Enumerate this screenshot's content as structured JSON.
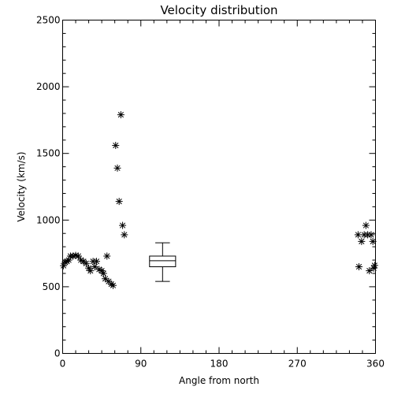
{
  "chart_data": {
    "type": "scatter",
    "title": "Velocity distribution",
    "xlabel": "Angle from north",
    "ylabel": "Velocity (km/s)",
    "xlim": [
      0,
      360
    ],
    "ylim": [
      0,
      2500
    ],
    "x_ticks": [
      "0",
      "90",
      "180",
      "270",
      "360"
    ],
    "y_ticks": [
      "0",
      "500",
      "1000",
      "1500",
      "2000",
      "2500"
    ],
    "grid": false,
    "legend": "none",
    "marker": "asterisk",
    "points": [
      {
        "x": 1,
        "y": 658
      },
      {
        "x": 3,
        "y": 685
      },
      {
        "x": 5,
        "y": 690
      },
      {
        "x": 7,
        "y": 700
      },
      {
        "x": 9,
        "y": 730
      },
      {
        "x": 12,
        "y": 730
      },
      {
        "x": 15,
        "y": 735
      },
      {
        "x": 18,
        "y": 730
      },
      {
        "x": 21,
        "y": 700
      },
      {
        "x": 24,
        "y": 690
      },
      {
        "x": 27,
        "y": 675
      },
      {
        "x": 30,
        "y": 640
      },
      {
        "x": 32,
        "y": 620
      },
      {
        "x": 35,
        "y": 690
      },
      {
        "x": 37,
        "y": 650
      },
      {
        "x": 39,
        "y": 690
      },
      {
        "x": 42,
        "y": 630
      },
      {
        "x": 45,
        "y": 620
      },
      {
        "x": 47,
        "y": 600
      },
      {
        "x": 49,
        "y": 560
      },
      {
        "x": 51,
        "y": 730
      },
      {
        "x": 53,
        "y": 540
      },
      {
        "x": 56,
        "y": 520
      },
      {
        "x": 58,
        "y": 510
      },
      {
        "x": 61,
        "y": 1560
      },
      {
        "x": 63,
        "y": 1390
      },
      {
        "x": 65,
        "y": 1140
      },
      {
        "x": 67,
        "y": 1790
      },
      {
        "x": 69,
        "y": 960
      },
      {
        "x": 71,
        "y": 890
      },
      {
        "x": 340,
        "y": 890
      },
      {
        "x": 341,
        "y": 650
      },
      {
        "x": 344,
        "y": 840
      },
      {
        "x": 347,
        "y": 890
      },
      {
        "x": 349,
        "y": 960
      },
      {
        "x": 351,
        "y": 890
      },
      {
        "x": 353,
        "y": 620
      },
      {
        "x": 355,
        "y": 890
      },
      {
        "x": 357,
        "y": 840
      },
      {
        "x": 358,
        "y": 640
      },
      {
        "x": 359,
        "y": 660
      }
    ],
    "boxplot": {
      "x": 115,
      "half_width_deg": 15,
      "whisker_low": 540,
      "q1": 650,
      "median": 695,
      "q3": 730,
      "whisker_high": 830
    }
  }
}
